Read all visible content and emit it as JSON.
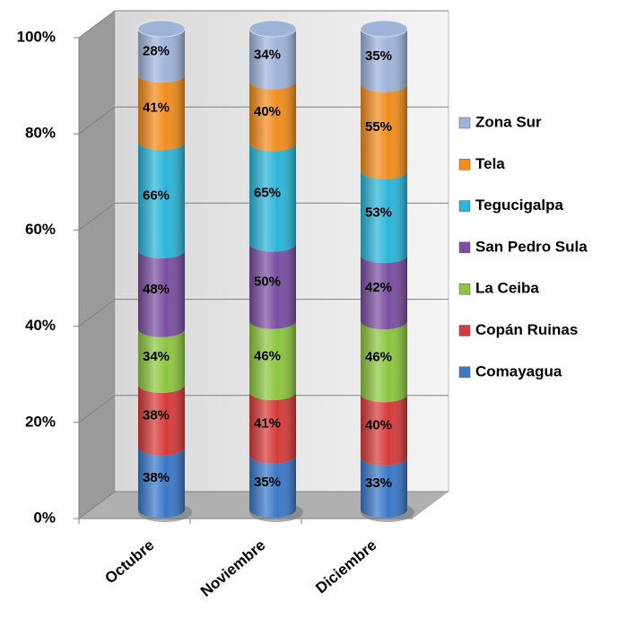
{
  "chart_data": {
    "type": "stacked100",
    "categories": [
      "Octubre",
      "Noviembre",
      "Diciembre"
    ],
    "series": [
      {
        "name": "Comayagua",
        "color": "#3a78c8",
        "values": [
          38,
          35,
          33
        ],
        "value_labels": [
          "38%",
          "35%",
          "33%"
        ]
      },
      {
        "name": "Copán Ruinas",
        "color": "#d63a3a",
        "values": [
          38,
          41,
          40
        ],
        "value_labels": [
          "38%",
          "41%",
          "40%"
        ]
      },
      {
        "name": "La Ceiba",
        "color": "#8cc63f",
        "values": [
          34,
          46,
          46
        ],
        "value_labels": [
          "34%",
          "46%",
          "46%"
        ]
      },
      {
        "name": "San Pedro Sula",
        "color": "#7a4ea0",
        "values": [
          48,
          50,
          42
        ],
        "value_labels": [
          "48%",
          "50%",
          "42%"
        ]
      },
      {
        "name": "Tegucigalpa",
        "color": "#2bb5d8",
        "values": [
          66,
          65,
          53
        ],
        "value_labels": [
          "66%",
          "65%",
          "53%"
        ]
      },
      {
        "name": "Tela",
        "color": "#f28c1c",
        "values": [
          41,
          40,
          55
        ],
        "value_labels": [
          "41%",
          "40%",
          "55%"
        ]
      },
      {
        "name": "Zona Sur",
        "color": "#9fb3d9",
        "values": [
          28,
          34,
          35
        ],
        "value_labels": [
          "28%",
          "34%",
          "35%"
        ]
      }
    ],
    "ylim": [
      0,
      100
    ],
    "yticks": [
      {
        "value": 0,
        "label": "0%"
      },
      {
        "value": 20,
        "label": "20%"
      },
      {
        "value": 40,
        "label": "40%"
      },
      {
        "value": 60,
        "label": "60%"
      },
      {
        "value": 80,
        "label": "80%"
      },
      {
        "value": 100,
        "label": "100%"
      }
    ],
    "grid": true,
    "legend": "right"
  }
}
